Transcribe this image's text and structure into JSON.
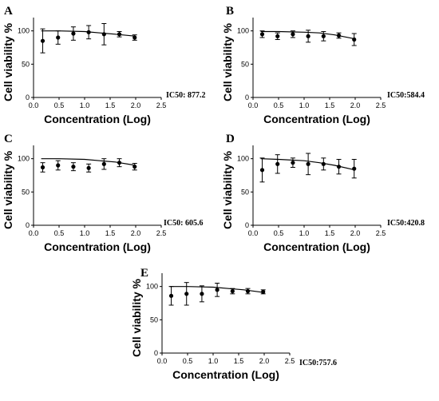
{
  "figure": {
    "ylabel": "Cell viability %",
    "xlabel": "Concentration (Log)"
  },
  "chart_data": [
    {
      "type": "scatter",
      "panel": "A",
      "ic50_label": "IC50: 877.2",
      "xlabel": "Concentration (Log)",
      "ylabel": "Cell viability %",
      "xlim": [
        0.0,
        2.5
      ],
      "ylim": [
        0,
        120
      ],
      "xticks": [
        "0.0",
        "0.5",
        "1.0",
        "1.5",
        "2.0",
        "2.5"
      ],
      "yticks": [
        "0",
        "50",
        "100"
      ],
      "x": [
        0.18,
        0.48,
        0.78,
        1.08,
        1.38,
        1.68,
        1.98
      ],
      "y": [
        85,
        90,
        96,
        98,
        95,
        95,
        90
      ],
      "err": [
        18,
        10,
        10,
        10,
        16,
        4,
        4
      ],
      "fit_curve": {
        "x": [
          0.15,
          0.5,
          1.0,
          1.3,
          1.6,
          2.0
        ],
        "y": [
          100,
          100,
          99,
          97,
          95,
          92
        ]
      }
    },
    {
      "type": "scatter",
      "panel": "B",
      "ic50_label": "IC50:584.4",
      "xlabel": "Concentration (Log)",
      "ylabel": "Cell viability %",
      "xlim": [
        0.0,
        2.5
      ],
      "ylim": [
        0,
        120
      ],
      "xticks": [
        "0.0",
        "0.5",
        "1.0",
        "1.5",
        "2.0",
        "2.5"
      ],
      "yticks": [
        "0",
        "50",
        "100"
      ],
      "x": [
        0.18,
        0.48,
        0.78,
        1.08,
        1.38,
        1.68,
        1.98
      ],
      "y": [
        95,
        92,
        95,
        92,
        92,
        93,
        87
      ],
      "err": [
        5,
        5,
        5,
        9,
        7,
        4,
        9
      ],
      "fit_curve": {
        "x": [
          0.15,
          0.5,
          1.0,
          1.3,
          1.6,
          2.0
        ],
        "y": [
          99,
          99,
          98,
          97,
          94,
          88
        ]
      }
    },
    {
      "type": "scatter",
      "panel": "C",
      "ic50_label": "IC50: 605.6",
      "xlabel": "Concentration (Log)",
      "ylabel": "Cell viability %",
      "xlim": [
        0.0,
        2.5
      ],
      "ylim": [
        0,
        120
      ],
      "xticks": [
        "0.0",
        "0.5",
        "1.0",
        "1.5",
        "2.0",
        "2.5"
      ],
      "yticks": [
        "0",
        "50",
        "100"
      ],
      "x": [
        0.18,
        0.48,
        0.78,
        1.08,
        1.38,
        1.68,
        1.98
      ],
      "y": [
        87,
        90,
        88,
        86,
        92,
        94,
        88
      ],
      "err": [
        7,
        7,
        6,
        6,
        8,
        6,
        5
      ],
      "fit_curve": {
        "x": [
          0.15,
          0.5,
          1.0,
          1.3,
          1.6,
          2.0
        ],
        "y": [
          100,
          100,
          99,
          97,
          95,
          90
        ]
      }
    },
    {
      "type": "scatter",
      "panel": "D",
      "ic50_label": "IC50:420.8",
      "xlabel": "Concentration (Log)",
      "ylabel": "Cell viability %",
      "xlim": [
        0.0,
        2.5
      ],
      "ylim": [
        0,
        120
      ],
      "xticks": [
        "0.0",
        "0.5",
        "1.0",
        "1.5",
        "2.0",
        "2.5"
      ],
      "yticks": [
        "0",
        "50",
        "100"
      ],
      "x": [
        0.18,
        0.48,
        0.78,
        1.08,
        1.38,
        1.68,
        1.98
      ],
      "y": [
        83,
        92,
        94,
        92,
        92,
        88,
        85
      ],
      "err": [
        18,
        14,
        7,
        16,
        9,
        11,
        14
      ],
      "fit_curve": {
        "x": [
          0.15,
          0.5,
          1.0,
          1.3,
          1.6,
          2.0
        ],
        "y": [
          100,
          99,
          97,
          94,
          90,
          83
        ]
      }
    },
    {
      "type": "scatter",
      "panel": "E",
      "ic50_label": "IC50:757.6",
      "xlabel": "Concentration (Log)",
      "ylabel": "Cell viability %",
      "xlim": [
        0.0,
        2.5
      ],
      "ylim": [
        0,
        120
      ],
      "xticks": [
        "0.0",
        "0.5",
        "1.0",
        "1.5",
        "2.0",
        "2.5"
      ],
      "yticks": [
        "0",
        "50",
        "100"
      ],
      "x": [
        0.18,
        0.48,
        0.78,
        1.08,
        1.38,
        1.68,
        1.98
      ],
      "y": [
        86,
        89,
        89,
        95,
        93,
        93,
        92
      ],
      "err": [
        14,
        17,
        12,
        10,
        4,
        4,
        3
      ],
      "fit_curve": {
        "x": [
          0.15,
          0.5,
          1.0,
          1.3,
          1.6,
          2.0
        ],
        "y": [
          100,
          100,
          99,
          97,
          95,
          91
        ]
      }
    }
  ]
}
